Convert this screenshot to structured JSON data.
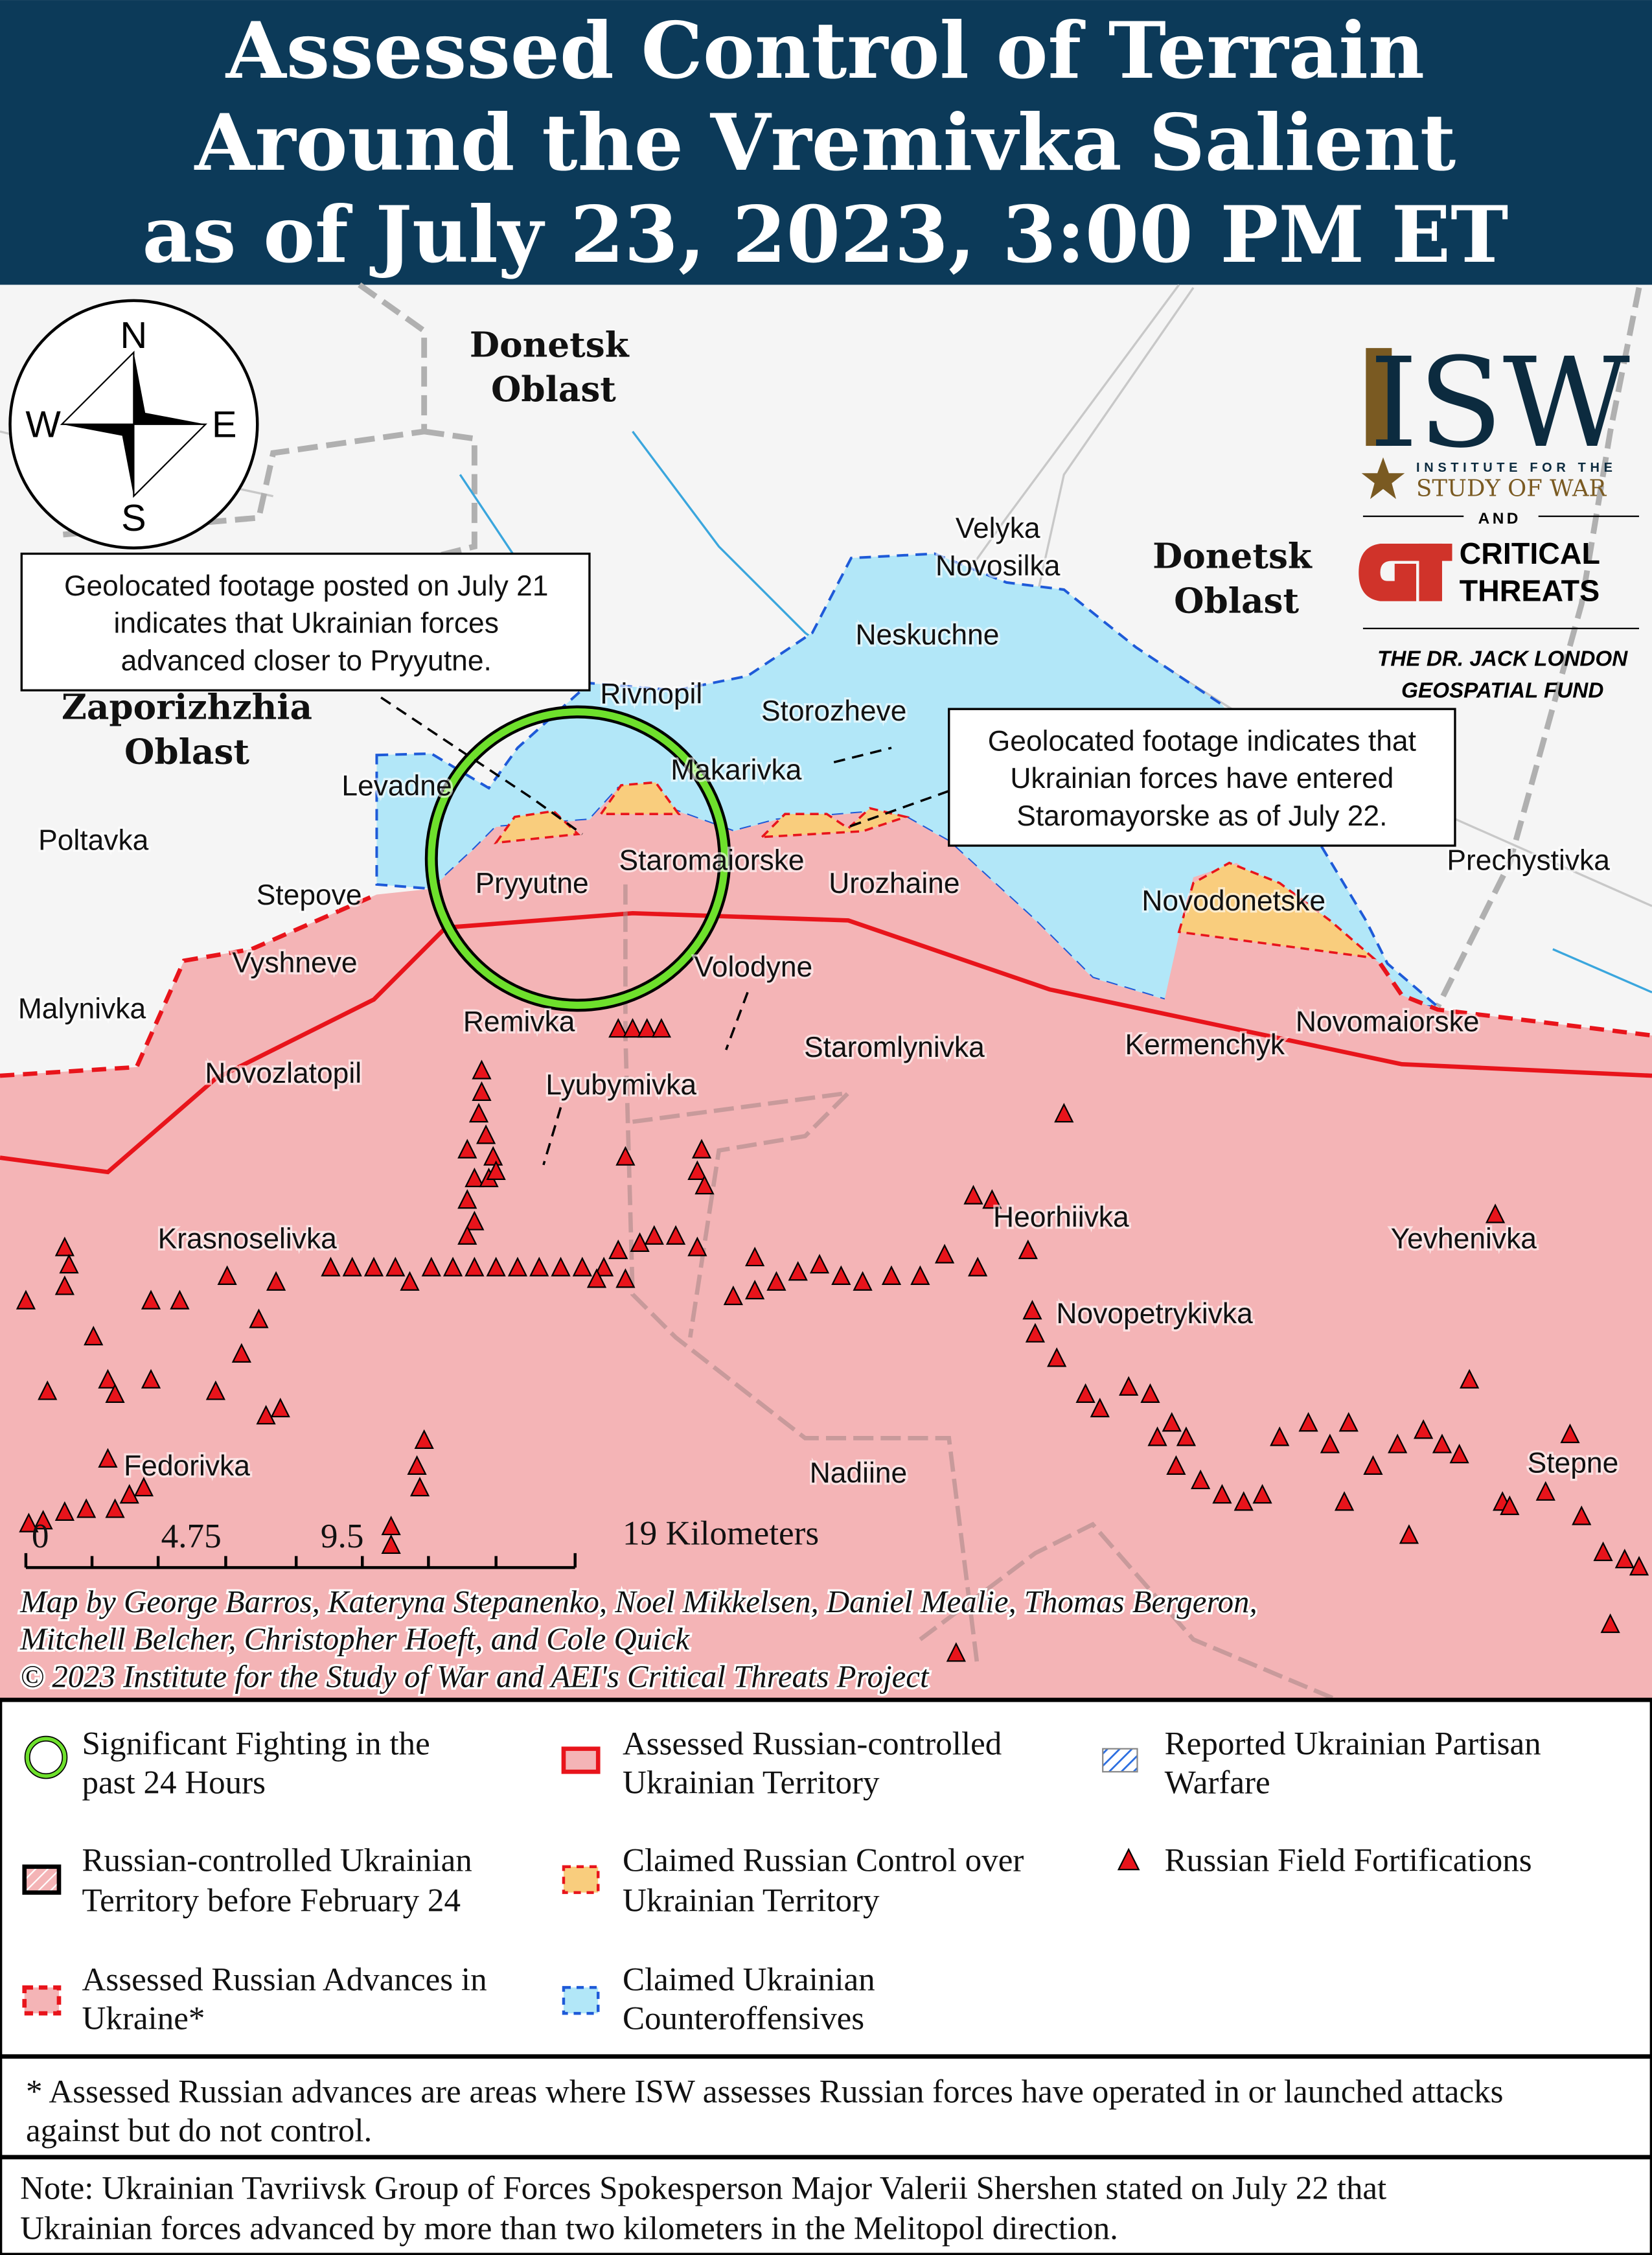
{
  "header": {
    "title_lines": [
      "Assessed Control of Terrain",
      "Around the Vremivka Salient",
      "as of July 23, 2023, 3:00 PM ET"
    ]
  },
  "colors": {
    "header_bg": "#0c3a59",
    "russian_territory": "#f4b4b6",
    "front_line": "#e8141b",
    "ukrainian_counteroffensive": "#b2e7f8",
    "claimed_russian": "#f9cd7d",
    "fighting_circle": "#6ee02c",
    "land": "#f5f5f5",
    "water": "#3aa6dd"
  },
  "compass": {
    "n": "N",
    "s": "S",
    "e": "E",
    "w": "W"
  },
  "oblasts": [
    {
      "lines": [
        "Donetsk",
        "Oblast"
      ]
    },
    {
      "lines": [
        "Donetsk",
        "Oblast"
      ]
    },
    {
      "lines": [
        "Zaporizhzhia",
        "Oblast"
      ]
    }
  ],
  "settlements": [
    "Velyka",
    "Novosilka",
    "Neskuchne",
    "Rivnopil",
    "Storozheve",
    "Makarivka",
    "Levadne",
    "Poltavka",
    "Stepove",
    "Pryyutne",
    "Staromaiorske",
    "Urozhaine",
    "Novodonetske",
    "Prechystivka",
    "Vyshneve",
    "Malynivka",
    "Volodyne",
    "Remivka",
    "Staromlynivka",
    "Kermenchyk",
    "Novomaiorske",
    "Novozlatopil",
    "Lyubymivka",
    "Heorhiivka",
    "Krasnoselivka",
    "Yevhenivka",
    "Novopetrykivka",
    "Fedorivka",
    "Nadiine",
    "Stepne"
  ],
  "callouts": [
    {
      "lines": [
        "Geolocated footage posted on July 21",
        "indicates that Ukrainian forces",
        "advanced closer to Pryyutne."
      ]
    },
    {
      "lines": [
        "Geolocated footage indicates that",
        "Ukrainian forces have entered",
        "Staromayorske as of July 22."
      ]
    }
  ],
  "logo": {
    "isw": "ISW",
    "institute": "INSTITUTE FOR THE",
    "study": "STUDY OF WAR",
    "and": "AND",
    "ct1": "CRITICAL",
    "ct2": "THREATS",
    "fund1": "THE DR. JACK LONDON",
    "fund2": "GEOSPATIAL FUND"
  },
  "scale_bar": {
    "ticks": [
      "0",
      "4.75",
      "9.5",
      "19 Kilometers"
    ]
  },
  "credits": [
    "Map by George Barros, Kateryna Stepanenko, Noel Mikkelsen, Daniel Mealie, Thomas Bergeron,",
    "Mitchell Belcher, Christopher Hoeft, and Cole Quick",
    "© 2023 Institute for the Study of War and AEI's Critical Threats Project"
  ],
  "legend": [
    {
      "lines": [
        "Significant Fighting in the",
        "past 24 Hours"
      ]
    },
    {
      "lines": [
        "Assessed Russian-controlled",
        "Ukrainian Territory"
      ]
    },
    {
      "lines": [
        "Reported Ukrainian Partisan",
        "Warfare"
      ]
    },
    {
      "lines": [
        "Russian-controlled Ukrainian",
        "Territory before February 24"
      ]
    },
    {
      "lines": [
        "Claimed Russian Control over",
        "Ukrainian Territory"
      ]
    },
    {
      "lines": [
        "Russian Field Fortifications"
      ]
    },
    {
      "lines": [
        "Assessed Russian Advances in",
        "Ukraine*"
      ]
    },
    {
      "lines": [
        "Claimed Ukrainian",
        "Counteroffensives"
      ]
    }
  ],
  "footnote": [
    "* Assessed Russian advances are areas where ISW assesses Russian forces have operated in or launched attacks",
    "against but do not control."
  ],
  "note": [
    "Note: Ukrainian Tavriivsk Group of Forces Spokesperson Major Valerii Shershen stated on July 22 that",
    "Ukrainian forces advanced by more than two kilometers in the Melitopol direction."
  ]
}
